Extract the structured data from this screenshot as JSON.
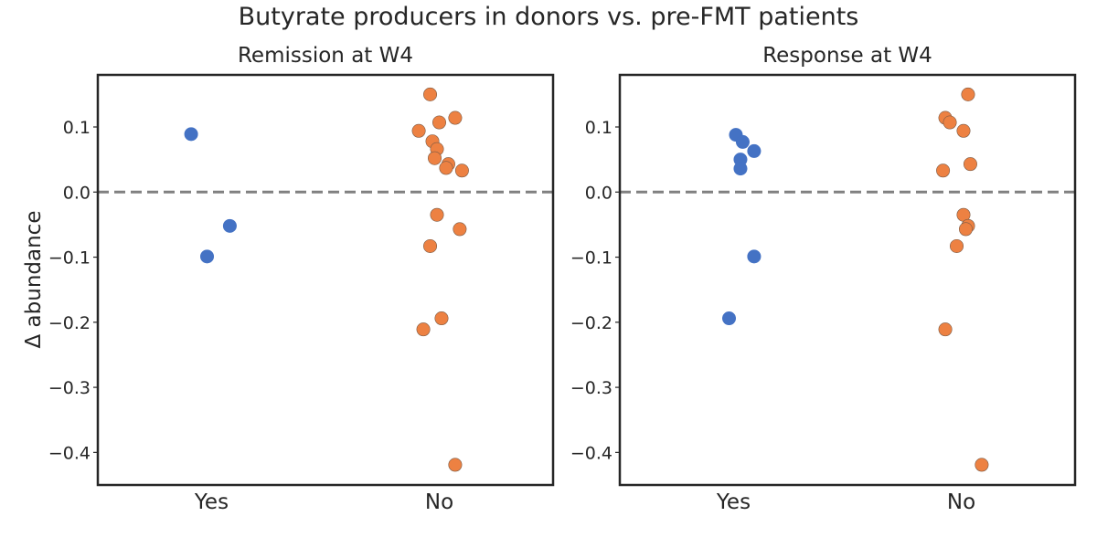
{
  "figure": {
    "suptitle": "Butyrate producers in donors vs. pre-FMT patients",
    "ylabel": "Δ abundance"
  },
  "colors": {
    "yes": "#4472c4",
    "no": "#ed8142",
    "zero_line": "#808080",
    "axes": "#262626"
  },
  "chart_data": [
    {
      "type": "scatter",
      "title": "Remission at W4",
      "categories": [
        "Yes",
        "No"
      ],
      "ylim": [
        -0.45,
        0.18
      ],
      "yticks": [
        0.1,
        0.0,
        -0.1,
        -0.2,
        -0.3,
        -0.4
      ],
      "ytick_labels": [
        "0.1",
        "0.0",
        "−0.1",
        "−0.2",
        "−0.3",
        "−0.4"
      ],
      "reference_line": 0.0,
      "grid": false,
      "series": [
        {
          "category": "Yes",
          "color": "yes",
          "points": [
            {
              "jitter": -0.09,
              "y": 0.089
            },
            {
              "jitter": 0.08,
              "y": -0.052
            },
            {
              "jitter": -0.02,
              "y": -0.099
            }
          ]
        },
        {
          "category": "No",
          "color": "no",
          "points": [
            {
              "jitter": -0.04,
              "y": 0.15
            },
            {
              "jitter": 0.07,
              "y": 0.114
            },
            {
              "jitter": 0.0,
              "y": 0.107
            },
            {
              "jitter": -0.09,
              "y": 0.094
            },
            {
              "jitter": -0.03,
              "y": 0.078
            },
            {
              "jitter": -0.01,
              "y": 0.066
            },
            {
              "jitter": -0.02,
              "y": 0.052
            },
            {
              "jitter": 0.04,
              "y": 0.043
            },
            {
              "jitter": 0.03,
              "y": 0.037
            },
            {
              "jitter": 0.1,
              "y": 0.033
            },
            {
              "jitter": -0.01,
              "y": -0.035
            },
            {
              "jitter": 0.09,
              "y": -0.057
            },
            {
              "jitter": -0.04,
              "y": -0.083
            },
            {
              "jitter": 0.01,
              "y": -0.194
            },
            {
              "jitter": -0.07,
              "y": -0.211
            },
            {
              "jitter": 0.07,
              "y": -0.419
            }
          ]
        }
      ]
    },
    {
      "type": "scatter",
      "title": "Response at W4",
      "categories": [
        "Yes",
        "No"
      ],
      "ylim": [
        -0.45,
        0.18
      ],
      "yticks": [
        0.1,
        0.0,
        -0.1,
        -0.2,
        -0.3,
        -0.4
      ],
      "ytick_labels": [
        "0.1",
        "0.0",
        "−0.1",
        "−0.2",
        "−0.3",
        "−0.4"
      ],
      "reference_line": 0.0,
      "grid": false,
      "series": [
        {
          "category": "Yes",
          "color": "yes",
          "points": [
            {
              "jitter": 0.01,
              "y": 0.088
            },
            {
              "jitter": 0.04,
              "y": 0.077
            },
            {
              "jitter": 0.09,
              "y": 0.063
            },
            {
              "jitter": 0.03,
              "y": 0.05
            },
            {
              "jitter": 0.03,
              "y": 0.036
            },
            {
              "jitter": 0.09,
              "y": -0.099
            },
            {
              "jitter": -0.02,
              "y": -0.194
            }
          ]
        },
        {
          "category": "No",
          "color": "no",
          "points": [
            {
              "jitter": 0.03,
              "y": 0.15
            },
            {
              "jitter": -0.07,
              "y": 0.114
            },
            {
              "jitter": -0.05,
              "y": 0.107
            },
            {
              "jitter": 0.01,
              "y": 0.094
            },
            {
              "jitter": 0.04,
              "y": 0.043
            },
            {
              "jitter": -0.08,
              "y": 0.033
            },
            {
              "jitter": 0.01,
              "y": -0.035
            },
            {
              "jitter": 0.03,
              "y": -0.052
            },
            {
              "jitter": 0.02,
              "y": -0.057
            },
            {
              "jitter": -0.02,
              "y": -0.083
            },
            {
              "jitter": -0.07,
              "y": -0.211
            },
            {
              "jitter": 0.09,
              "y": -0.419
            }
          ]
        }
      ]
    }
  ]
}
